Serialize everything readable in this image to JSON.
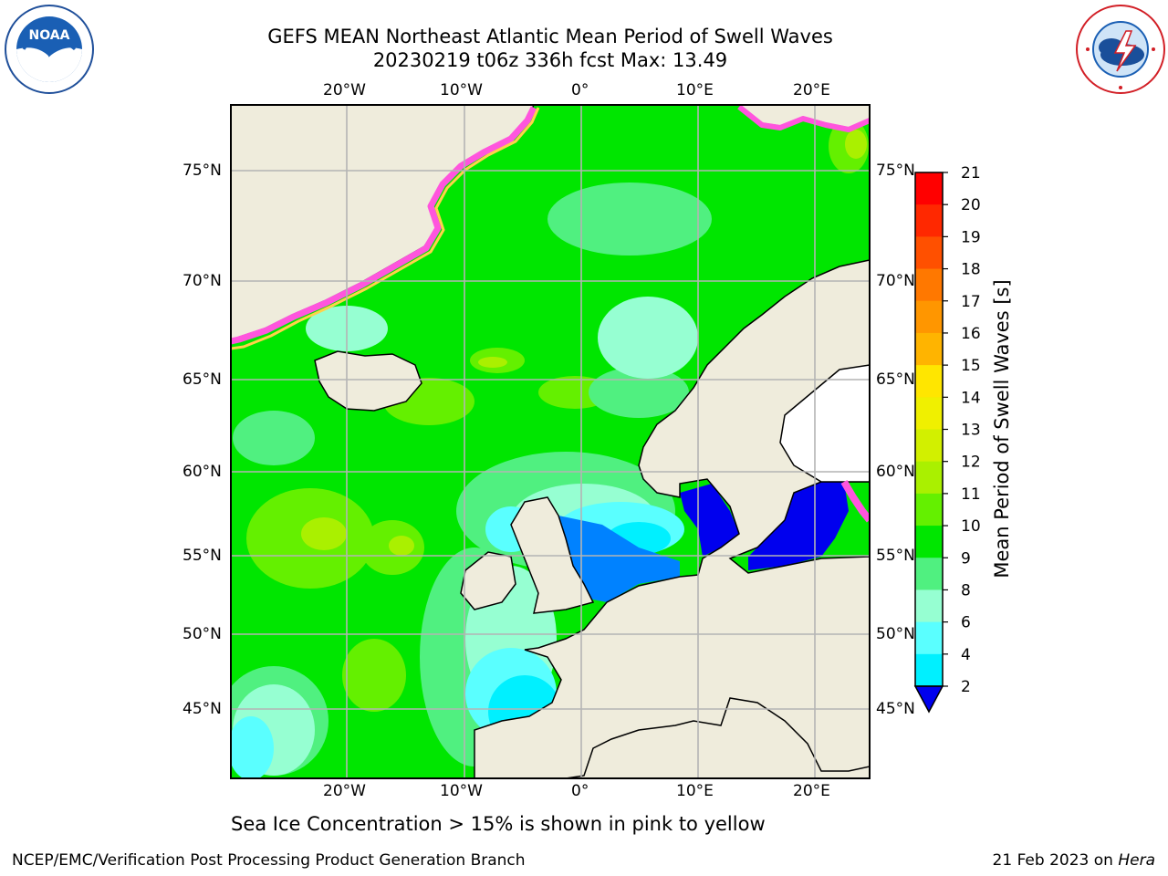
{
  "title": {
    "line1": "GEFS MEAN Northeast Atlantic Mean Period of Swell Waves",
    "line2": "20230219 t06z 336h fcst   Max: 13.49"
  },
  "map": {
    "projection": "regional lat-lon",
    "lon_labels_top": [
      "20°W",
      "10°W",
      "0°",
      "10°E",
      "20°E"
    ],
    "lon_labels_bottom": [
      "20°W",
      "10°W",
      "0°",
      "10°E",
      "20°E"
    ],
    "lat_labels_left": [
      "75°N",
      "70°N",
      "65°N",
      "60°N",
      "55°N",
      "50°N",
      "45°N"
    ],
    "lat_labels_right": [
      "75°N",
      "70°N",
      "65°N",
      "60°N",
      "55°N",
      "50°N",
      "45°N"
    ],
    "land_color": "#efecdc",
    "ice_colors": [
      "#ff55dd",
      "#ffd24a"
    ],
    "grid_color": "#b4b4b4"
  },
  "colorbar": {
    "label": "Mean Period of Swell Waves [s]",
    "ticks": [
      "21",
      "20",
      "19",
      "18",
      "17",
      "16",
      "15",
      "14",
      "13",
      "12",
      "11",
      "10",
      "9",
      "8",
      "6",
      "4",
      "2"
    ],
    "colors": [
      "#ff0000",
      "#ff2800",
      "#ff5000",
      "#ff7800",
      "#ff9600",
      "#ffb400",
      "#ffe600",
      "#f0f000",
      "#d2f000",
      "#aaf000",
      "#64f000",
      "#00e600",
      "#50f080",
      "#96ffd2",
      "#5affff",
      "#00f0ff",
      "#0082ff",
      "#0000ee"
    ],
    "extend": "min"
  },
  "caption": "Sea Ice Concentration > 15% is shown in pink to yellow",
  "footer": {
    "left": "NCEP/EMC/Verification Post Processing Product Generation Branch",
    "right_prefix": "21 Feb 2023 on",
    "right_host": "Hera"
  }
}
